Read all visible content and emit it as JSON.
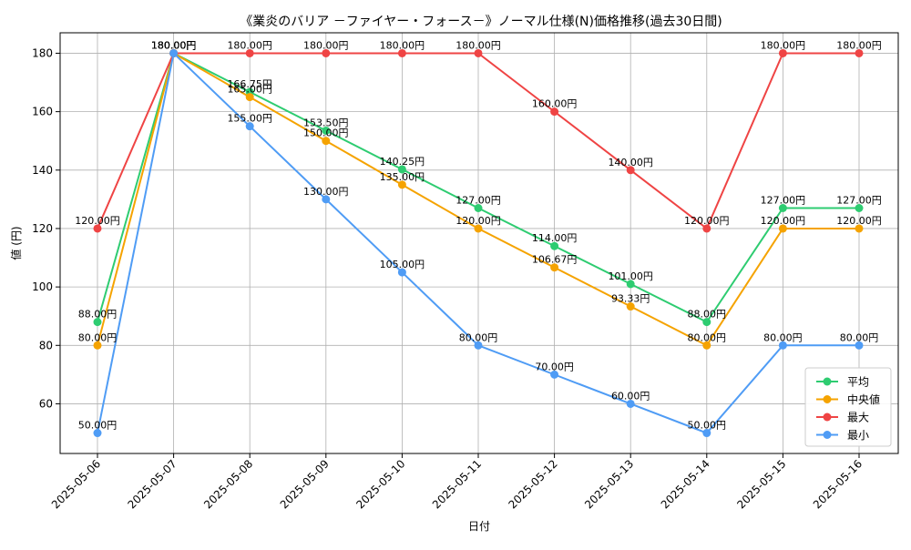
{
  "chart_data": {
    "type": "line",
    "title": "《業炎のバリア －ファイヤー・フォース－》ノーマル仕様(N)価格推移(過去30日間)",
    "xlabel": "日付",
    "ylabel": "値 (円)",
    "categories": [
      "2025-05-06",
      "2025-05-07",
      "2025-05-08",
      "2025-05-09",
      "2025-05-10",
      "2025-05-11",
      "2025-05-12",
      "2025-05-13",
      "2025-05-14",
      "2025-05-15",
      "2025-05-16"
    ],
    "ylim": [
      43,
      187
    ],
    "yticks": [
      60,
      80,
      100,
      120,
      140,
      160,
      180
    ],
    "grid": true,
    "legend_position": "lower-right",
    "value_suffix": "円",
    "series": [
      {
        "name": "平均",
        "color": "#2ecc71",
        "values": [
          88.0,
          180.0,
          166.75,
          153.5,
          140.25,
          127.0,
          114.0,
          101.0,
          88.0,
          127.0,
          127.0
        ],
        "labels": [
          "88.00円",
          "180.00円",
          "166.75円",
          "153.50円",
          "140.25円",
          "127.00円",
          "114.00円",
          "101.00円",
          "88.00円",
          "127.00円",
          "127.00円"
        ]
      },
      {
        "name": "中央値",
        "color": "#f5a300",
        "values": [
          80.0,
          180.0,
          165.0,
          150.0,
          135.0,
          120.0,
          106.67,
          93.33,
          80.0,
          120.0,
          120.0
        ],
        "labels": [
          "80.00円",
          "180.00円",
          "165.00円",
          "150.00円",
          "135.00円",
          "120.00円",
          "106.67円",
          "93.33円",
          "80.00円",
          "120.00円",
          "120.00円"
        ]
      },
      {
        "name": "最大",
        "color": "#ef4444",
        "values": [
          120.0,
          180.0,
          180.0,
          180.0,
          180.0,
          180.0,
          160.0,
          140.0,
          120.0,
          180.0,
          180.0
        ],
        "labels": [
          "120.00円",
          "180.00円",
          "180.00円",
          "180.00円",
          "180.00円",
          "180.00円",
          "160.00円",
          "140.00円",
          "120.00円",
          "180.00円",
          "180.00円"
        ]
      },
      {
        "name": "最小",
        "color": "#4f9cf5",
        "values": [
          50.0,
          180.0,
          155.0,
          130.0,
          105.0,
          80.0,
          70.0,
          60.0,
          50.0,
          80.0,
          80.0
        ],
        "labels": [
          "50.00円",
          "180.00円",
          "155.00円",
          "130.00円",
          "105.00円",
          "80.00円",
          "70.00円",
          "60.00円",
          "50.00円",
          "80.00円",
          "80.00円"
        ]
      }
    ]
  }
}
